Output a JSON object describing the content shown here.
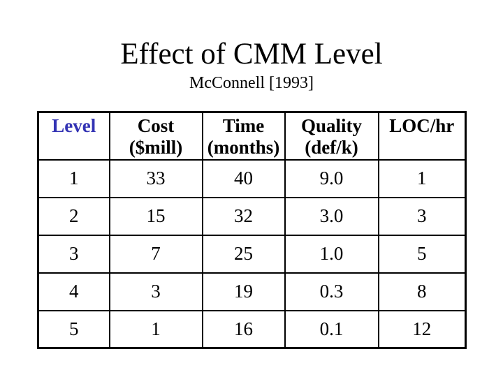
{
  "slide": {
    "title": "Effect of CMM Level",
    "subtitle": "McConnell [1993]"
  },
  "colors": {
    "accent_blue": "#3333b4",
    "text": "#000000",
    "table_border": "#000000",
    "background": "#ffffff"
  },
  "chart_data": {
    "type": "table",
    "title": "Effect of CMM Level",
    "subtitle": "McConnell [1993]",
    "columns": [
      {
        "main": "Level",
        "sub": ""
      },
      {
        "main": "Cost",
        "sub": "($mill)"
      },
      {
        "main": "Time",
        "sub": "(months)"
      },
      {
        "main": "Quality",
        "sub": "(def/k)"
      },
      {
        "main": "LOC/hr",
        "sub": ""
      }
    ],
    "rows": [
      [
        "1",
        "33",
        "40",
        "9.0",
        "1"
      ],
      [
        "2",
        "15",
        "32",
        "3.0",
        "3"
      ],
      [
        "3",
        "7",
        "25",
        "1.0",
        "5"
      ],
      [
        "4",
        "3",
        "19",
        "0.3",
        "8"
      ],
      [
        "5",
        "1",
        "16",
        "0.1",
        "12"
      ]
    ]
  }
}
